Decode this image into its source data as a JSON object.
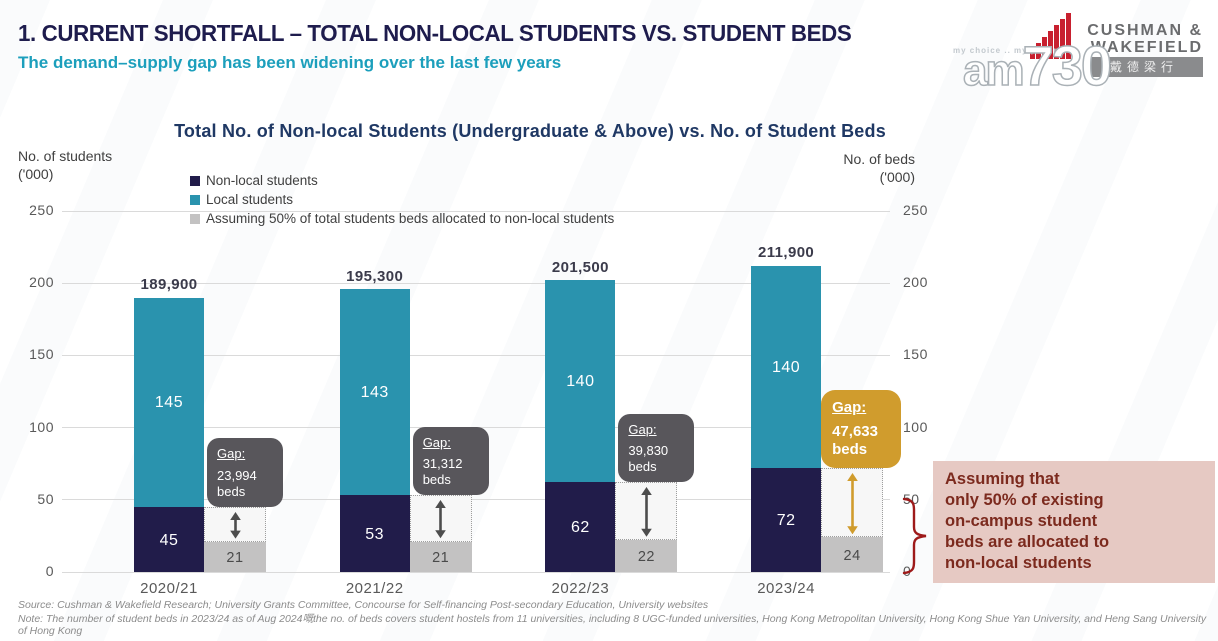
{
  "page": {
    "title": "1. CURRENT SHORTFALL – TOTAL NON-LOCAL STUDENTS VS. STUDENT BEDS",
    "subtitle": "The demand–supply gap has been widening over the last few years"
  },
  "branding": {
    "am730": {
      "wordmark_prefix": "am",
      "wordmark_number": "730",
      "tagline": "my choice .. my paper"
    },
    "cushman_wakefield": {
      "line1": "CUSHMAN &",
      "line2": "WAKEFIELD",
      "chinese": "戴德梁行"
    }
  },
  "chart_data": {
    "type": "bar",
    "stacked": true,
    "title": "Total No. of Non-local Students (Undergraduate & Above) vs. No. of Student Beds",
    "left_axis": {
      "label": "No. of students\n('000)",
      "ticks": [
        250,
        200,
        150,
        100,
        50,
        0
      ],
      "range": [
        0,
        250
      ]
    },
    "right_axis": {
      "label": "No. of beds\n('000)",
      "ticks": [
        250,
        200,
        150,
        100,
        50,
        0
      ],
      "range": [
        0,
        250
      ]
    },
    "grid": true,
    "legend_position": "top-left",
    "categories": [
      "2020/21",
      "2021/22",
      "2022/23",
      "2023/24"
    ],
    "series": [
      {
        "name": "Non-local students",
        "color": "#211C4A",
        "values": [
          45,
          53,
          62,
          72
        ]
      },
      {
        "name": "Local students",
        "color": "#2A93AE",
        "values": [
          145,
          143,
          140,
          140
        ]
      },
      {
        "name": "Assuming 50% of total students beds allocated to non-local students",
        "color": "#C3C2C2",
        "values": [
          21,
          21,
          22,
          24
        ]
      }
    ],
    "totals": {
      "labels": [
        "189,900",
        "195,300",
        "201,500",
        "211,900"
      ],
      "values": [
        189.9,
        195.3,
        201.5,
        211.9
      ]
    },
    "gaps": {
      "label": "Gap:",
      "unit": "beds",
      "values": [
        "23,994",
        "31,312",
        "39,830",
        "47,633"
      ],
      "highlight_index": 3
    }
  },
  "annotation": {
    "text": "Assuming that\nonly 50% of existing\non-campus student\nbeds are allocated to\nnon-local students"
  },
  "footer": {
    "source": "Source:  Cushman & Wakefield Research; University Grants Committee, Concourse for Self-financing Post-secondary Education, University websites",
    "note": "Note: The number of student beds in 2023/24 as of Aug 2024嘅the no. of beds covers student hostels from 11 universities, including 8 UGC-funded universities, Hong Kong Metropolitan University, Hong Kong Shue Yan University, and Heng Sang University of Hong Kong"
  },
  "colors": {
    "title_navy": "#1E1C4D",
    "subtitle_teal": "#1C9FBC",
    "chart_title_blue": "#1F3864",
    "non_local_navy": "#211C4A",
    "local_teal": "#2A93AE",
    "beds_gray": "#C3C2C2",
    "callout_gray": "#58565B",
    "callout_gold": "#D09C2D",
    "arrow_gray": "#4D4D4D",
    "brace_red": "#9E1A1A",
    "annotation_bg": "#E6C9C3",
    "annotation_text": "#7C2A1E",
    "gridline": "#DADADA"
  }
}
